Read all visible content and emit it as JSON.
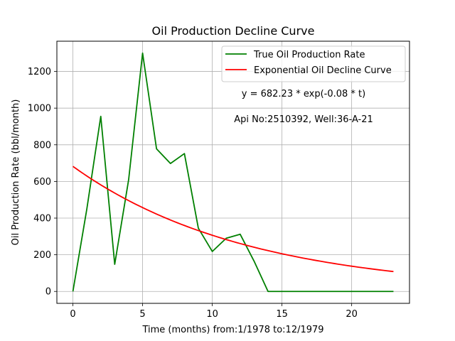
{
  "chart_data": {
    "type": "line",
    "title": "Oil Production Decline Curve",
    "xlabel": "Time (months) from:1/1978 to:12/1979",
    "ylabel": "Oil Production Rate (bbl/month)",
    "xlim": [
      -1.15,
      24.15
    ],
    "ylim": [
      -65,
      1365
    ],
    "xticks": [
      0,
      5,
      10,
      15,
      20
    ],
    "yticks": [
      0,
      200,
      400,
      600,
      800,
      1000,
      1200
    ],
    "grid": true,
    "legend_position": "top-right",
    "series": [
      {
        "name": "True Oil Production Rate",
        "color": "#008000",
        "x": [
          0,
          1,
          2,
          3,
          4,
          5,
          6,
          7,
          8,
          9,
          10,
          11,
          12,
          13,
          14,
          15,
          16,
          17,
          18,
          19,
          20,
          21,
          22,
          23
        ],
        "values": [
          0,
          450,
          955,
          148,
          610,
          1300,
          778,
          698,
          752,
          345,
          218,
          290,
          312,
          165,
          0,
          0,
          0,
          0,
          0,
          0,
          0,
          0,
          0,
          0
        ]
      },
      {
        "name": "Exponential Oil Decline Curve",
        "color": "#ff0000",
        "model": {
          "a": 682.23,
          "b": -0.08,
          "t_start": 0,
          "t_end": 23
        }
      }
    ],
    "annotations": [
      "y = 682.23 * exp(-0.08 * t)",
      "Api No:2510392, Well:36-A-21"
    ]
  }
}
